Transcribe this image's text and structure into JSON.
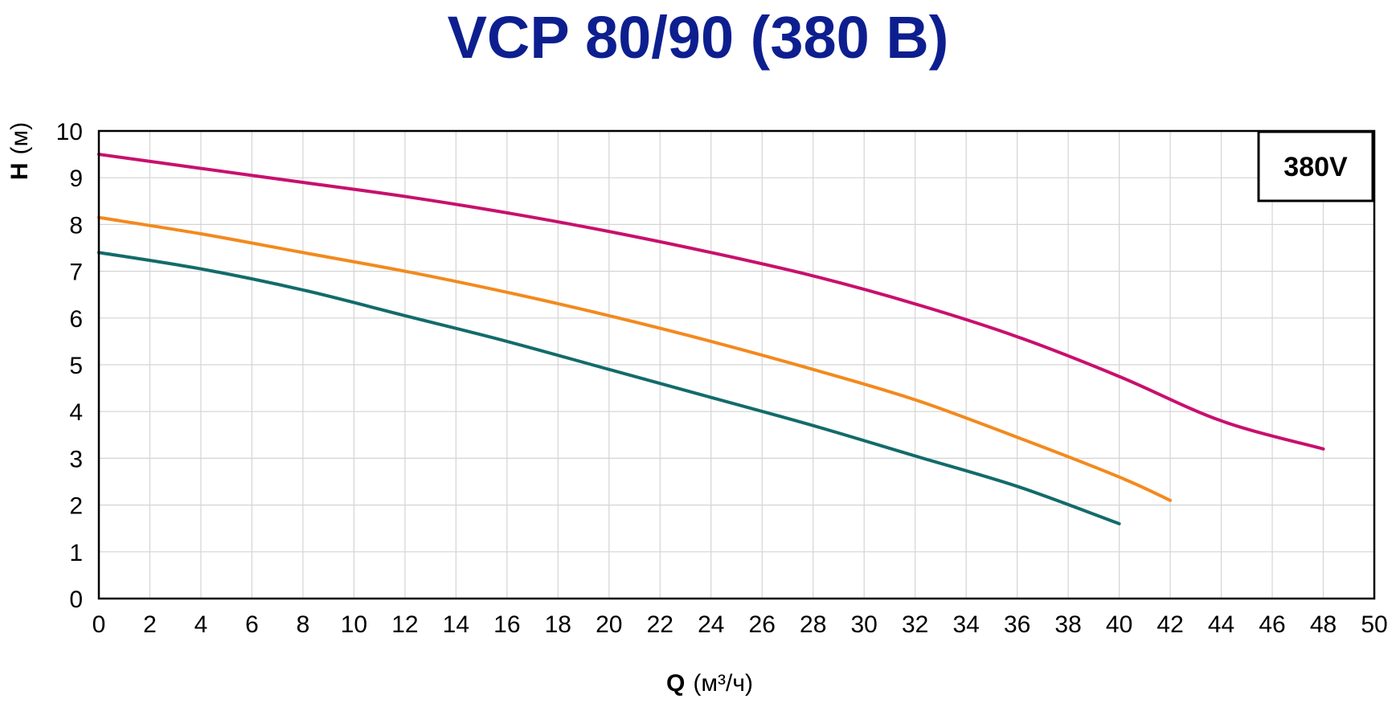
{
  "chart_data": {
    "type": "line",
    "title": "VCP 80/90 (380 В)",
    "xlabel": "Q",
    "xlabel_unit": "(м³/ч)",
    "ylabel": "H",
    "ylabel_unit": "(м)",
    "xlim": [
      0,
      50
    ],
    "ylim": [
      0,
      10
    ],
    "x_ticks": [
      0,
      2,
      4,
      6,
      8,
      10,
      12,
      14,
      16,
      18,
      20,
      22,
      24,
      26,
      28,
      30,
      32,
      34,
      36,
      38,
      40,
      42,
      44,
      46,
      48,
      50
    ],
    "y_ticks": [
      0,
      1,
      2,
      3,
      4,
      5,
      6,
      7,
      8,
      9,
      10
    ],
    "grid": true,
    "legend": {
      "placement": "top-right",
      "label": "380V"
    },
    "series": [
      {
        "color": "#c8106e",
        "x": [
          0,
          4,
          8,
          12,
          16,
          20,
          24,
          28,
          32,
          36,
          40,
          44,
          48
        ],
        "y": [
          9.5,
          9.2,
          8.9,
          8.6,
          8.25,
          7.85,
          7.4,
          6.9,
          6.3,
          5.6,
          4.75,
          3.8,
          3.2
        ]
      },
      {
        "color": "#f28a1e",
        "x": [
          0,
          4,
          8,
          12,
          16,
          20,
          24,
          28,
          32,
          36,
          40,
          42
        ],
        "y": [
          8.15,
          7.8,
          7.4,
          7.0,
          6.55,
          6.05,
          5.5,
          4.9,
          4.25,
          3.45,
          2.6,
          2.1
        ]
      },
      {
        "color": "#136b6b",
        "x": [
          0,
          4,
          8,
          12,
          16,
          20,
          24,
          28,
          32,
          36,
          40
        ],
        "y": [
          7.4,
          7.05,
          6.6,
          6.05,
          5.5,
          4.9,
          4.3,
          3.7,
          3.05,
          2.4,
          1.6
        ]
      }
    ]
  }
}
